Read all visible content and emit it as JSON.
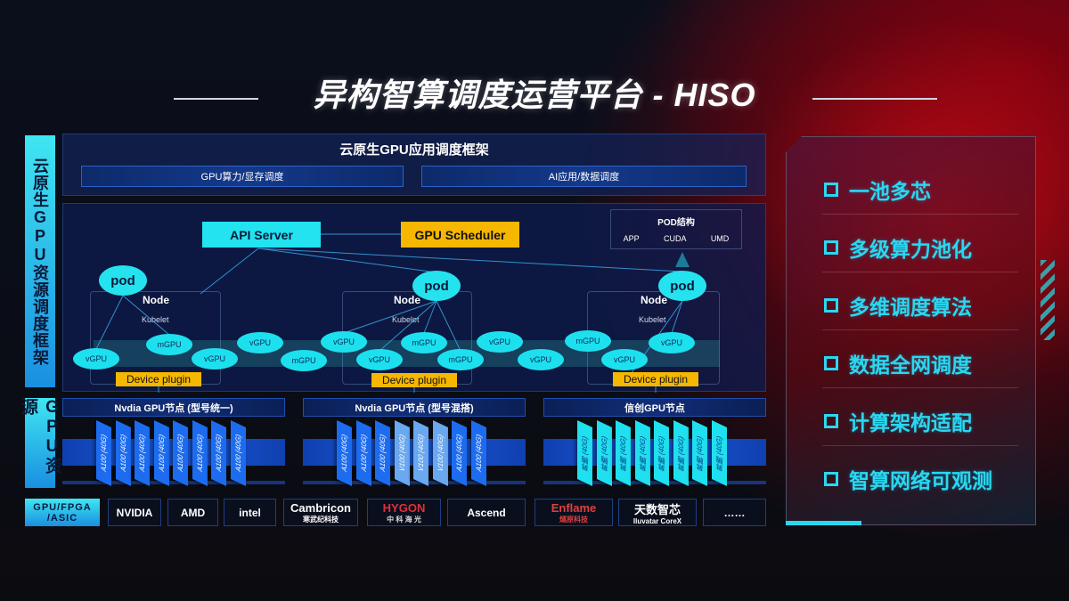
{
  "title": "异构智算调度运营平台 - HISO",
  "left_labels": {
    "framework": "云原生GPU资源调度框架",
    "resources": "GPU资源"
  },
  "top": {
    "title": "云原生GPU应用调度框架",
    "sub1": "GPU算力/显存调度",
    "sub2": "AI应用/数据调度"
  },
  "diagram": {
    "api_server": "API Server",
    "gpu_scheduler": "GPU Scheduler",
    "pod_struct": {
      "title": "POD结构",
      "items": [
        "APP",
        "CUDA",
        "UMD"
      ]
    },
    "pod": "pod",
    "node": "Node",
    "kubelet": "Kubelet",
    "device_plugin": "Device plugin",
    "units": [
      "vGPU",
      "mGPU",
      "vGPU",
      "vGPU",
      "mGPU",
      "vGPU",
      "mGPU",
      "vGPU",
      "mGPU",
      "vGPU",
      "vGPU",
      "mGPU",
      "vGPU",
      "vGPU"
    ]
  },
  "gpu_nodes": [
    {
      "title": "Nvdia GPU节点 (型号统一)",
      "cards": [
        "A100 (40G)",
        "A100 (40G)",
        "A100 (40G)",
        "A100 (40G)",
        "A100 (40G)",
        "A100 (40G)",
        "A100 (40G)",
        "A100 (40G)"
      ]
    },
    {
      "title": "Nvdia GPU节点 (型号混搭)",
      "cards": [
        "A100 (40G)",
        "A100 (40G)",
        "A100 (40G)",
        "V100 (40G)",
        "V100 (40G)",
        "V100 (40G)",
        "A100 (40G)",
        "A100 (40G)"
      ]
    },
    {
      "title": "信创GPU节点",
      "cards": [
        "昇腾 (40G)",
        "昇腾 (40G)",
        "昇腾 (40G)",
        "昇腾 (40G)",
        "昇腾 (40G)",
        "昇腾 (40G)",
        "昇腾 (40G)",
        "昇腾 (40G)"
      ]
    }
  ],
  "vendors": {
    "label": "GPU/FPGA /ASIC",
    "items": [
      [
        "NVIDIA"
      ],
      [
        "AMD"
      ],
      [
        "intel"
      ],
      [
        "Cambricon",
        "寒武纪科技"
      ],
      [
        "HYGON",
        "中 科 海 光"
      ],
      [
        "Ascend"
      ],
      [
        "Enflame",
        "燧原科技"
      ],
      [
        "天数智芯",
        "Iluvatar CoreX"
      ],
      [
        "……"
      ]
    ]
  },
  "features": [
    "一池多芯",
    "多级算力池化",
    "多维调度算法",
    "数据全网调度",
    "计算架构适配",
    "智算网络可观测"
  ],
  "colors": {
    "cyan": "#22e3ef",
    "orange": "#f6b700",
    "blue": "#1a5ad8"
  }
}
